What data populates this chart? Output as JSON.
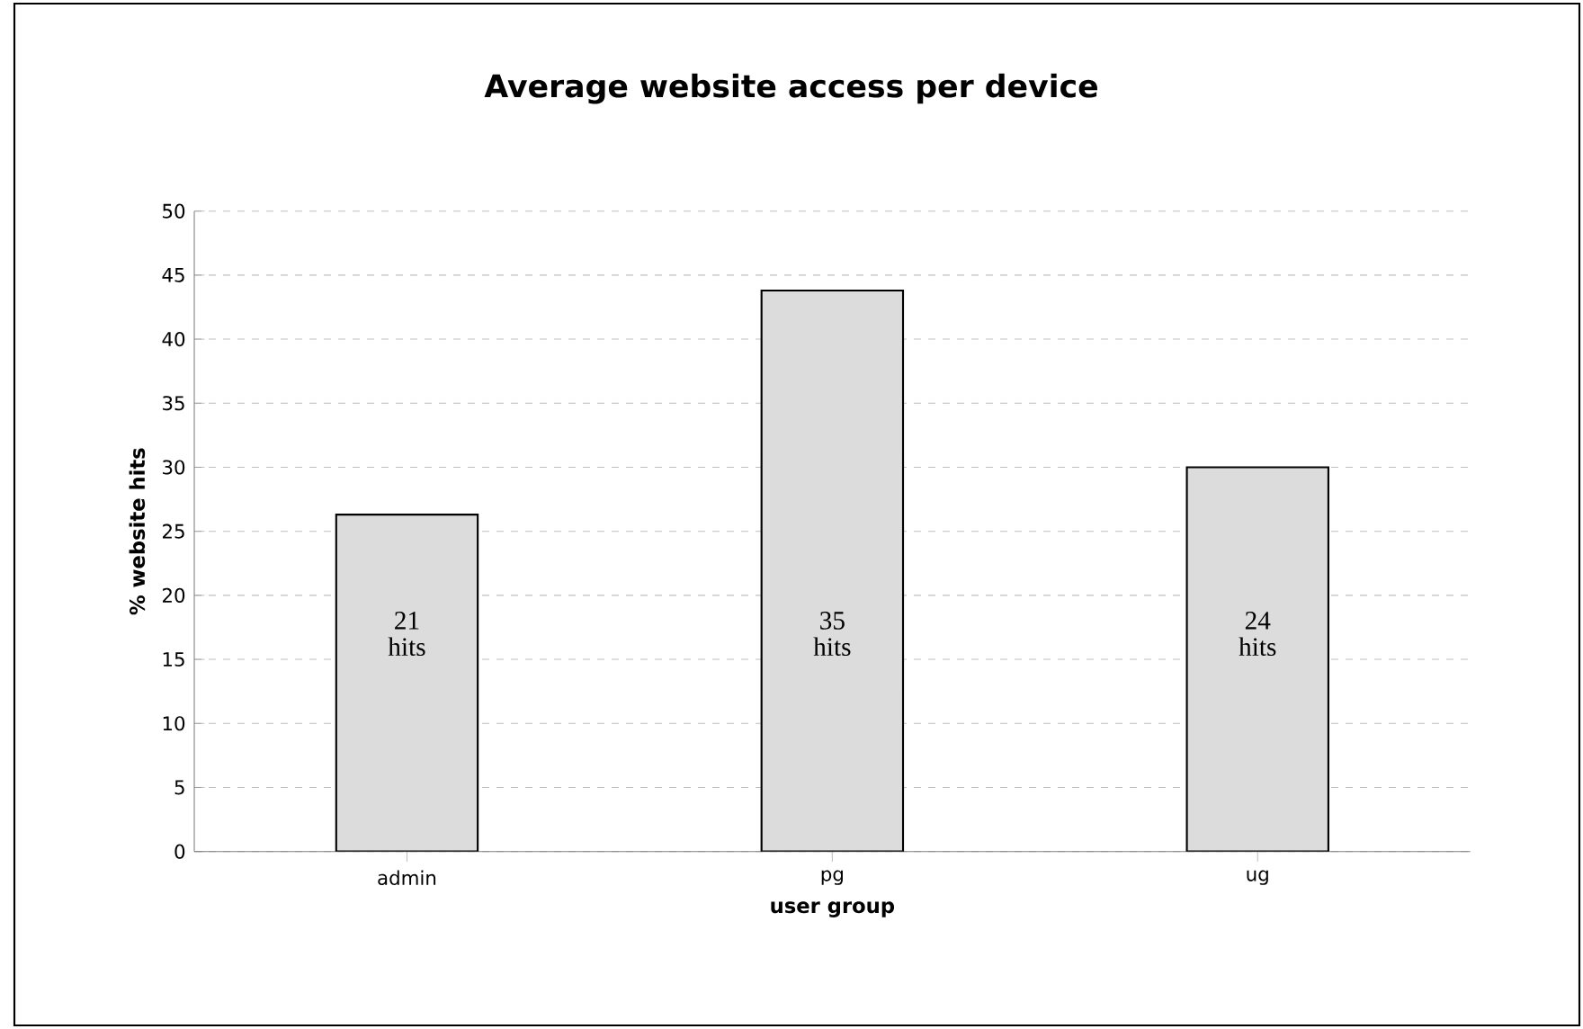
{
  "chart_data": {
    "type": "bar",
    "title": "Average website access per device",
    "xlabel": "user group",
    "ylabel": "% website hits",
    "categories": [
      "admin",
      "pg",
      "ug"
    ],
    "values": [
      26.3,
      43.8,
      30.0
    ],
    "color": "#dcdcdc",
    "ylim": [
      0,
      50
    ],
    "yticks": [
      0,
      5,
      10,
      15,
      20,
      25,
      30,
      35,
      40,
      45,
      50
    ],
    "grid": "y",
    "annotations": [
      "21 hits",
      "35 hits",
      "24 hits"
    ]
  }
}
